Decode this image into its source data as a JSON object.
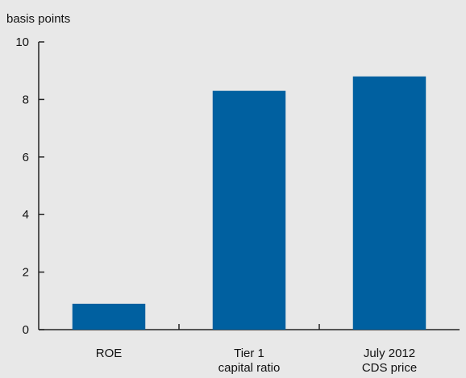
{
  "chart_data": {
    "type": "bar",
    "unit_label": "basis points",
    "categories": [
      [
        "ROE"
      ],
      [
        "Tier 1",
        "capital ratio"
      ],
      [
        "July 2012",
        "CDS price"
      ]
    ],
    "values": [
      0.9,
      8.3,
      8.8
    ],
    "ylim": [
      0,
      10
    ],
    "yticks": [
      "0",
      "2",
      "4",
      "6",
      "8",
      "10"
    ],
    "grid": false,
    "bar_color": "#0060a0",
    "axis_color": "#222222",
    "background_color": "#e8e8e8"
  }
}
